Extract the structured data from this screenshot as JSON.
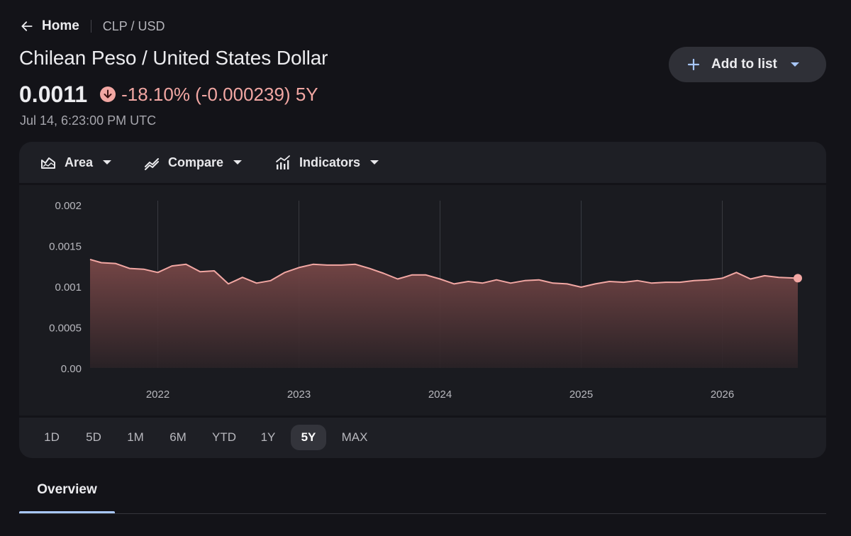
{
  "breadcrumb": {
    "home_label": "Home",
    "pair_label": "CLP / USD"
  },
  "title": "Chilean Peso / United States Dollar",
  "add_button": {
    "label": "Add to list",
    "icon": "plus-icon"
  },
  "quote": {
    "price": "0.0011",
    "change_text": "-18.10% (-0.000239) 5Y",
    "direction": "down",
    "timestamp": "Jul 14, 6:23:00 PM UTC"
  },
  "toolbar": {
    "area_label": "Area",
    "compare_label": "Compare",
    "indicators_label": "Indicators"
  },
  "ranges": [
    "1D",
    "5D",
    "1M",
    "6M",
    "YTD",
    "1Y",
    "5Y",
    "MAX"
  ],
  "active_range": "5Y",
  "tabs": {
    "overview_label": "Overview"
  },
  "colors": {
    "line": "#f2a7a3",
    "accent_tab": "#a8c7fa",
    "negative": "#f2a7a3"
  },
  "chart_data": {
    "type": "area",
    "y_tick_labels": [
      "0.002",
      "0.0015",
      "0.001",
      "0.0005",
      "0.00"
    ],
    "y_tick_values": [
      0.002,
      0.0015,
      0.001,
      0.0005,
      0
    ],
    "x_tick_labels": [
      "2022",
      "2023",
      "2024",
      "2025",
      "2026"
    ],
    "x_tick_values": [
      2022,
      2023,
      2024,
      2025,
      2026
    ],
    "ylim": [
      0,
      0.00205
    ],
    "xlim": [
      2021.52,
      2026.535
    ],
    "grid": "vertical",
    "series": [
      {
        "x": [
          2021.52,
          2021.6,
          2021.7,
          2021.8,
          2021.9,
          2022.0,
          2022.1,
          2022.2,
          2022.3,
          2022.4,
          2022.5,
          2022.55,
          2022.6,
          2022.7,
          2022.8,
          2022.9,
          2023.0,
          2023.1,
          2023.2,
          2023.3,
          2023.4,
          2023.5,
          2023.6,
          2023.7,
          2023.8,
          2023.9,
          2024.0,
          2024.1,
          2024.2,
          2024.3,
          2024.4,
          2024.5,
          2024.6,
          2024.7,
          2024.8,
          2024.9,
          2025.0,
          2025.1,
          2025.2,
          2025.3,
          2025.4,
          2025.5,
          2025.6,
          2025.7,
          2025.8,
          2025.9,
          2026.0,
          2026.1,
          2026.2,
          2026.3,
          2026.4,
          2026.535
        ],
        "y": [
          0.00133,
          0.00129,
          0.00128,
          0.00122,
          0.00121,
          0.00117,
          0.00125,
          0.00127,
          0.00118,
          0.00119,
          0.00103,
          0.00107,
          0.00111,
          0.00104,
          0.00107,
          0.00117,
          0.00123,
          0.00127,
          0.00126,
          0.00126,
          0.00127,
          0.00122,
          0.00116,
          0.00109,
          0.00114,
          0.00114,
          0.00109,
          0.00103,
          0.00106,
          0.00104,
          0.00108,
          0.00104,
          0.00107,
          0.00108,
          0.00104,
          0.00103,
          0.00099,
          0.00103,
          0.00106,
          0.00105,
          0.00107,
          0.00104,
          0.00105,
          0.00105,
          0.00107,
          0.00108,
          0.0011,
          0.00117,
          0.00109,
          0.00113,
          0.00111,
          0.0011
        ]
      }
    ]
  }
}
